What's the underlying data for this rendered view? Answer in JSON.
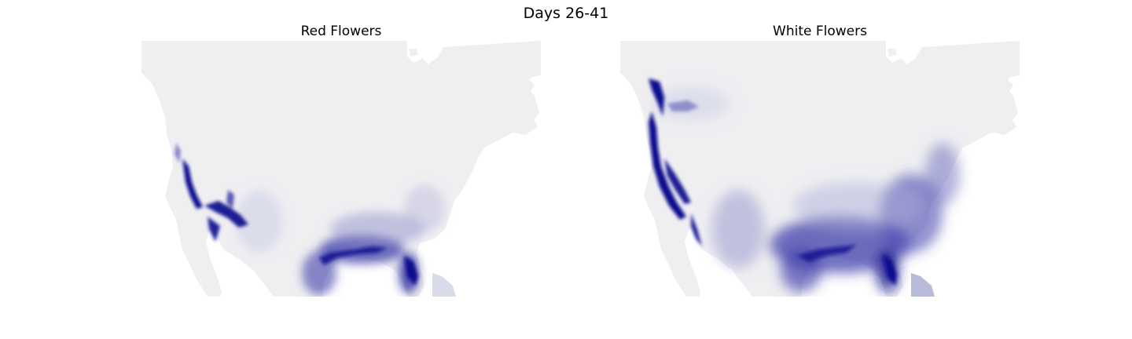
{
  "figure": {
    "title": "Days 26-41"
  },
  "maps": [
    {
      "id": "left",
      "title": "Red Flowers"
    },
    {
      "id": "right",
      "title": "White Flowers"
    }
  ],
  "colors": {
    "background_land": "#efeff2",
    "ocean": "#ffffff",
    "high_density": "#10108f"
  }
}
